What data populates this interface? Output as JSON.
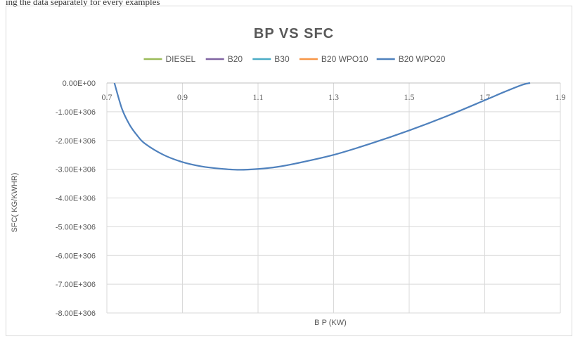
{
  "top_caption": "ing the data separately for every examples",
  "chart_data": {
    "type": "line",
    "title": "BP VS SFC",
    "xlabel": "B P (KW)",
    "ylabel": "SFC(  KG/KWHR)",
    "x_ticks": [
      "0.7",
      "0.9",
      "1.1",
      "1.3",
      "1.5",
      "1.7",
      "1.9"
    ],
    "x_tick_values": [
      0.7,
      0.9,
      1.1,
      1.3,
      1.5,
      1.7,
      1.9
    ],
    "y_ticks": [
      "0.00E+00",
      "-1.00E+306",
      "-2.00E+306",
      "-3.00E+306",
      "-4.00E+306",
      "-5.00E+306",
      "-6.00E+306",
      "-7.00E+306",
      "-8.00E+306"
    ],
    "y_tick_values": [
      0,
      -1,
      -2,
      -3,
      -4,
      -5,
      -6,
      -7,
      -8
    ],
    "y_unit_multiplier": "1E+306",
    "xlim": [
      0.7,
      1.9
    ],
    "ylim": [
      -8,
      0
    ],
    "grid": true,
    "legend_position": "top",
    "series": [
      {
        "name": "DIESEL",
        "color": "#9bbb59",
        "x": [],
        "y": []
      },
      {
        "name": "B20",
        "color": "#8064a2",
        "x": [],
        "y": []
      },
      {
        "name": "B30",
        "color": "#4bacc6",
        "x": [],
        "y": []
      },
      {
        "name": "B20 WPO10",
        "color": "#f79646",
        "x": [],
        "y": []
      },
      {
        "name": "B20 WPO20",
        "color": "#4f81bd",
        "x": [
          0.72,
          0.74,
          0.76,
          0.78,
          0.8,
          0.85,
          0.9,
          0.95,
          1.0,
          1.05,
          1.1,
          1.15,
          1.2,
          1.3,
          1.4,
          1.5,
          1.6,
          1.7,
          1.75,
          1.8,
          1.82
        ],
        "y": [
          0.0,
          -0.9,
          -1.45,
          -1.82,
          -2.1,
          -2.5,
          -2.75,
          -2.9,
          -2.98,
          -3.02,
          -2.99,
          -2.92,
          -2.8,
          -2.5,
          -2.1,
          -1.65,
          -1.15,
          -0.6,
          -0.32,
          -0.06,
          0.0
        ]
      }
    ]
  }
}
